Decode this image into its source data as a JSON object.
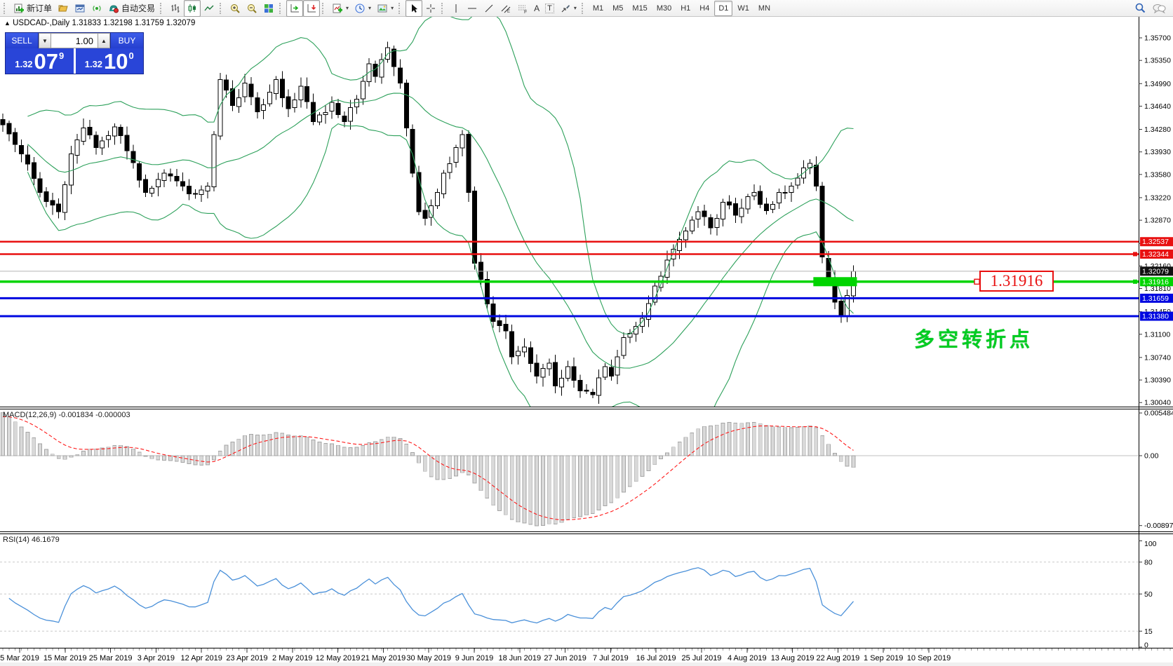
{
  "toolbar": {
    "new_order_label": "新订单",
    "autotrading_label": "自动交易",
    "text_tool_glyph": "A",
    "label_tool_glyph": "T",
    "caret_glyph": "▾",
    "timeframes": [
      "M1",
      "M5",
      "M15",
      "M30",
      "H1",
      "H4",
      "D1",
      "W1",
      "MN"
    ],
    "active_timeframe": "D1"
  },
  "icons": {
    "collapse_arrow": "▲"
  },
  "chart": {
    "title": "USDCAD-,Daily",
    "ohlc": "1.31833 1.32198 1.31759 1.32079",
    "annotation": "多空转折点",
    "level_label": "1.31916"
  },
  "trade_panel": {
    "sell_label": "SELL",
    "buy_label": "BUY",
    "volume": "1.00",
    "spin_down": "▼",
    "spin_up": "▲",
    "sell_price": {
      "small": "1.32",
      "big": "07",
      "sup": "9"
    },
    "buy_price": {
      "small": "1.32",
      "big": "10",
      "sup": "0"
    }
  },
  "chart_data": {
    "type": "candlestick",
    "symbol": "USDCAD",
    "period": "Daily",
    "current_price": 1.32079,
    "price_axis_ticks": [
      "1.35700",
      "1.35350",
      "1.34990",
      "1.34640",
      "1.34280",
      "1.33930",
      "1.33580",
      "1.33220",
      "1.32870",
      "1.32510",
      "1.32160",
      "1.31810",
      "1.31450",
      "1.31100",
      "1.30740",
      "1.30390",
      "1.30040"
    ],
    "price_badges": [
      {
        "value": "1.32537",
        "bg": "#e81010",
        "fg": "#ffffff"
      },
      {
        "value": "1.32344",
        "bg": "#e81010",
        "fg": "#ffffff"
      },
      {
        "value": "1.32079",
        "bg": "#101010",
        "fg": "#ffffff"
      },
      {
        "value": "1.31916",
        "bg": "#00d400",
        "fg": "#ffffff"
      },
      {
        "value": "1.31659",
        "bg": "#0008e0",
        "fg": "#ffffff"
      },
      {
        "value": "1.31380",
        "bg": "#0008e0",
        "fg": "#ffffff"
      }
    ],
    "horizontal_lines": [
      {
        "price": 1.32537,
        "color": "#e81010",
        "width": 2.5,
        "name": "resistance-line-1"
      },
      {
        "price": 1.32344,
        "color": "#e81010",
        "width": 2.5,
        "name": "resistance-line-2"
      },
      {
        "price": 1.31916,
        "color": "#00d400",
        "width": 3.5,
        "name": "pivot-line"
      },
      {
        "price": 1.31659,
        "color": "#0008e0",
        "width": 3,
        "name": "support-line-1"
      },
      {
        "price": 1.3138,
        "color": "#0008e0",
        "width": 3,
        "name": "support-line-2"
      }
    ],
    "highlight_box": {
      "from_index": 131,
      "to_index": 137,
      "price": 1.31916,
      "color": "#00d400"
    },
    "close_anchors": [
      [
        0,
        1.3435
      ],
      [
        3,
        1.339
      ],
      [
        6,
        1.333
      ],
      [
        9,
        1.33
      ],
      [
        11,
        1.339
      ],
      [
        13,
        1.343
      ],
      [
        15,
        1.34
      ],
      [
        18,
        1.3432
      ],
      [
        20,
        1.3395
      ],
      [
        23,
        1.333
      ],
      [
        26,
        1.336
      ],
      [
        29,
        1.334
      ],
      [
        31,
        1.3328
      ],
      [
        33,
        1.334
      ],
      [
        34,
        1.342
      ],
      [
        35,
        1.3505
      ],
      [
        37,
        1.3465
      ],
      [
        39,
        1.35
      ],
      [
        41,
        1.3455
      ],
      [
        44,
        1.3505
      ],
      [
        46,
        1.346
      ],
      [
        48,
        1.3495
      ],
      [
        50,
        1.344
      ],
      [
        53,
        1.347
      ],
      [
        55,
        1.344
      ],
      [
        57,
        1.3475
      ],
      [
        59,
        1.353
      ],
      [
        60,
        1.351
      ],
      [
        62,
        1.3555
      ],
      [
        64,
        1.35
      ],
      [
        65,
        1.343
      ],
      [
        66,
        1.336
      ],
      [
        67,
        1.33
      ],
      [
        68,
        1.329
      ],
      [
        70,
        1.333
      ],
      [
        71,
        1.336
      ],
      [
        73,
        1.34
      ],
      [
        74,
        1.342
      ],
      [
        75,
        1.333
      ],
      [
        76,
        1.322
      ],
      [
        77,
        1.3195
      ],
      [
        79,
        1.313
      ],
      [
        81,
        1.3115
      ],
      [
        82,
        1.3075
      ],
      [
        84,
        1.309
      ],
      [
        86,
        1.3045
      ],
      [
        88,
        1.3065
      ],
      [
        89,
        1.303
      ],
      [
        91,
        1.306
      ],
      [
        93,
        1.3022
      ],
      [
        95,
        1.3016
      ],
      [
        97,
        1.306
      ],
      [
        98,
        1.3045
      ],
      [
        100,
        1.3105
      ],
      [
        103,
        1.3135
      ],
      [
        105,
        1.3185
      ],
      [
        107,
        1.3225
      ],
      [
        110,
        1.327
      ],
      [
        112,
        1.33
      ],
      [
        114,
        1.3275
      ],
      [
        116,
        1.3315
      ],
      [
        118,
        1.3295
      ],
      [
        121,
        1.333
      ],
      [
        123,
        1.3302
      ],
      [
        125,
        1.333
      ],
      [
        127,
        1.334
      ],
      [
        129,
        1.3368
      ],
      [
        130,
        1.3375
      ],
      [
        131,
        1.334
      ],
      [
        132,
        1.323
      ],
      [
        133,
        1.3195
      ],
      [
        134,
        1.316
      ],
      [
        135,
        1.3138
      ],
      [
        136,
        1.317
      ],
      [
        137,
        1.32079
      ]
    ],
    "candle_count": 138,
    "bollinger": {
      "period": 20,
      "deviation": 2
    },
    "macd": {
      "label": "MACD(12,26,9)",
      "values": "-0.001834 -0.000003",
      "axis_ticks": [
        "0.005484",
        "0.00",
        "-0.008973"
      ]
    },
    "rsi": {
      "label": "RSI(14)",
      "value": "46.1679",
      "axis_ticks": [
        "100",
        "80",
        "50",
        "15",
        "0"
      ],
      "level_lines": [
        80,
        50,
        15
      ]
    },
    "dates": [
      "5 Mar 2019",
      "15 Mar 2019",
      "25 Mar 2019",
      "3 Apr 2019",
      "12 Apr 2019",
      "23 Apr 2019",
      "2 May 2019",
      "12 May 2019",
      "21 May 2019",
      "30 May 2019",
      "9 Jun 2019",
      "18 Jun 2019",
      "27 Jun 2019",
      "7 Jul 2019",
      "16 Jul 2019",
      "25 Jul 2019",
      "4 Aug 2019",
      "13 Aug 2019",
      "22 Aug 2019",
      "1 Sep 2019",
      "10 Sep 2019"
    ]
  },
  "colors": {
    "band": "#2ca05a",
    "rsi_line": "#4a90d9",
    "macd_signal": "#ff1a1a",
    "hist_fill": "#d9d9d9",
    "hist_stroke": "#a4a4a4",
    "up_candle": "#ffffff",
    "down_candle": "#000000",
    "candle_stroke": "#000000",
    "current_price_line": "#b4b4b4",
    "annotation_green": "#00cc22",
    "label_red": "#e81010"
  }
}
